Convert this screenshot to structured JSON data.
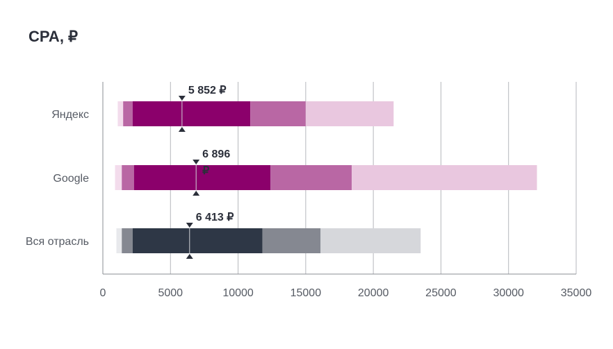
{
  "title": "CPA, ₽",
  "chart_data": {
    "type": "bar",
    "subtype": "horizontal-range-percentile",
    "title": "CPA, ₽",
    "xlim": [
      0,
      35000
    ],
    "x_ticks": [
      0,
      5000,
      10000,
      15000,
      20000,
      25000,
      30000,
      35000
    ],
    "x_tick_labels": [
      "0",
      "5000",
      "10000",
      "15000",
      "20000",
      "25000",
      "30000",
      "35000"
    ],
    "grid": "vertical",
    "categories": [
      "Яндекс",
      "Google",
      "Вся отрасль"
    ],
    "series": [
      {
        "category": "Яндекс",
        "palette": {
          "dark": "#8b006b",
          "mid": "#b967a4",
          "light": "#e9c7df",
          "lightest": "#f3dcec"
        },
        "ranges": [
          {
            "level": "lightest",
            "from": 1100,
            "to": 1500
          },
          {
            "level": "mid",
            "from": 1500,
            "to": 2200
          },
          {
            "level": "dark",
            "from": 2200,
            "to": 10900
          },
          {
            "level": "mid",
            "from": 10900,
            "to": 15000
          },
          {
            "level": "light",
            "from": 15000,
            "to": 21500
          }
        ],
        "median": 5852,
        "median_label": "5 852 ₽"
      },
      {
        "category": "Google",
        "palette": {
          "dark": "#8b006b",
          "mid": "#b967a4",
          "light": "#e9c7df",
          "lightest": "#f3dcec"
        },
        "ranges": [
          {
            "level": "lightest",
            "from": 900,
            "to": 1400
          },
          {
            "level": "mid",
            "from": 1400,
            "to": 2300
          },
          {
            "level": "dark",
            "from": 2300,
            "to": 12400
          },
          {
            "level": "mid",
            "from": 12400,
            "to": 18400
          },
          {
            "level": "light",
            "from": 18400,
            "to": 32100
          }
        ],
        "median": 6896,
        "median_label": "6 896",
        "median_unit": "₽"
      },
      {
        "category": "Вся отрасль",
        "palette": {
          "dark": "#2e3746",
          "mid": "#858891",
          "light": "#d6d7db",
          "lightest": "#e8e9ec"
        },
        "ranges": [
          {
            "level": "lightest",
            "from": 1000,
            "to": 1400
          },
          {
            "level": "mid",
            "from": 1400,
            "to": 2200
          },
          {
            "level": "dark",
            "from": 2200,
            "to": 11800
          },
          {
            "level": "mid",
            "from": 11800,
            "to": 16100
          },
          {
            "level": "light",
            "from": 16100,
            "to": 23500
          }
        ],
        "median": 6413,
        "median_label": "6 413 ₽"
      }
    ]
  }
}
